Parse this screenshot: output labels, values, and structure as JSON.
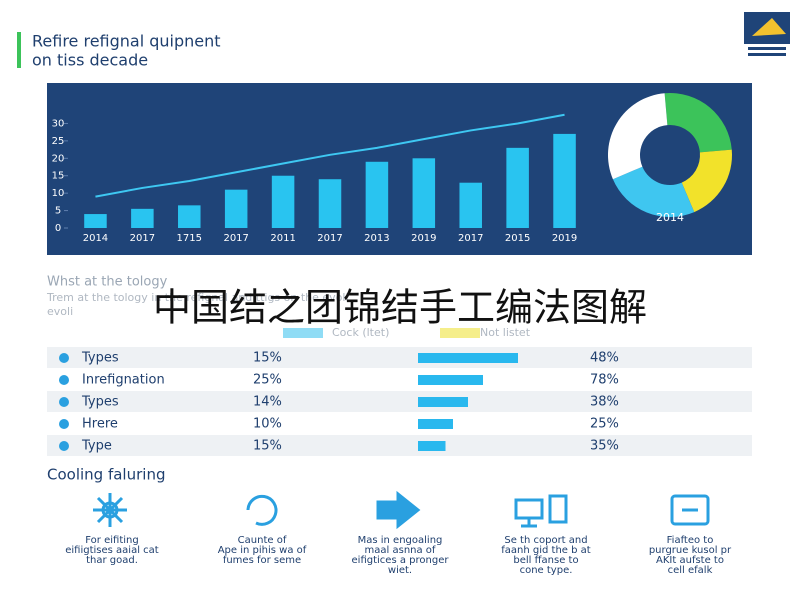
{
  "header": {
    "title_lines": [
      "Refire refignal quipnent",
      "on tiss decade"
    ]
  },
  "chart_data": [
    {
      "type": "bar",
      "categories": [
        "2014",
        "2017",
        "1715",
        "2017",
        "2011",
        "2017",
        "2013",
        "2019",
        "2017",
        "2015",
        "2019"
      ],
      "series": [
        {
          "type": "bar",
          "color": "#29c4f0",
          "values": [
            4,
            5.5,
            6.5,
            11,
            15,
            14,
            19,
            20,
            13,
            23,
            27
          ]
        },
        {
          "type": "line",
          "color": "#3ec8f2",
          "values": [
            9,
            11.5,
            13.5,
            16,
            18.5,
            21,
            23,
            25.5,
            28,
            30,
            32.5
          ]
        }
      ],
      "ylim": [
        0,
        33
      ],
      "yticks": [
        0,
        5,
        10,
        15,
        20,
        25,
        30
      ],
      "grid": false
    },
    {
      "type": "pie",
      "label": "2014",
      "categories": [
        null,
        null,
        null,
        null
      ],
      "values": [
        25,
        20,
        25,
        30
      ],
      "colors": [
        "#3cc35a",
        "#f2e22a",
        "#3fc6f0",
        "#ffffff"
      ]
    }
  ],
  "intro": {
    "heading": "Whst at the tology",
    "lines": [
      "Trem at the tology in the refignal and ttigs on the evoli",
      "evoli"
    ]
  },
  "legend": [
    "Cock (ltet)",
    "Not listet"
  ],
  "overlay": "中国结之团锦结手工编法图解",
  "table": {
    "rows": [
      {
        "name": "Types",
        "share": "15%",
        "bar": 20,
        "total": "48%"
      },
      {
        "name": "Inrefignation",
        "share": "25%",
        "bar": 13,
        "total": "78%"
      },
      {
        "name": "Types",
        "share": "14%",
        "bar": 10,
        "total": "38%"
      },
      {
        "name": "Hrere",
        "share": "10%",
        "bar": 7,
        "total": "25%"
      },
      {
        "name": "Type",
        "share": "15%",
        "bar": 5.5,
        "total": "35%"
      }
    ]
  },
  "features": {
    "heading": "Cooling faluring",
    "items": [
      {
        "lines": [
          "For eifiting",
          "eifiigtises aaial cat",
          "thar goad."
        ]
      },
      {
        "lines": [
          "Caunte of",
          "Ape in pihis wa of",
          "fumes for seme"
        ]
      },
      {
        "lines": [
          "Mas in engoaling",
          "maal asnna of",
          "eifigtices a pronger",
          "wiet."
        ]
      },
      {
        "lines": [
          "Se th coport and",
          "faanh gid the b at",
          "bell ffanse to",
          "cone type."
        ]
      },
      {
        "lines": [
          "Fiafteo to",
          "purgrue kusol pr",
          "AKIt aufste to",
          "cell efalk"
        ]
      }
    ]
  }
}
